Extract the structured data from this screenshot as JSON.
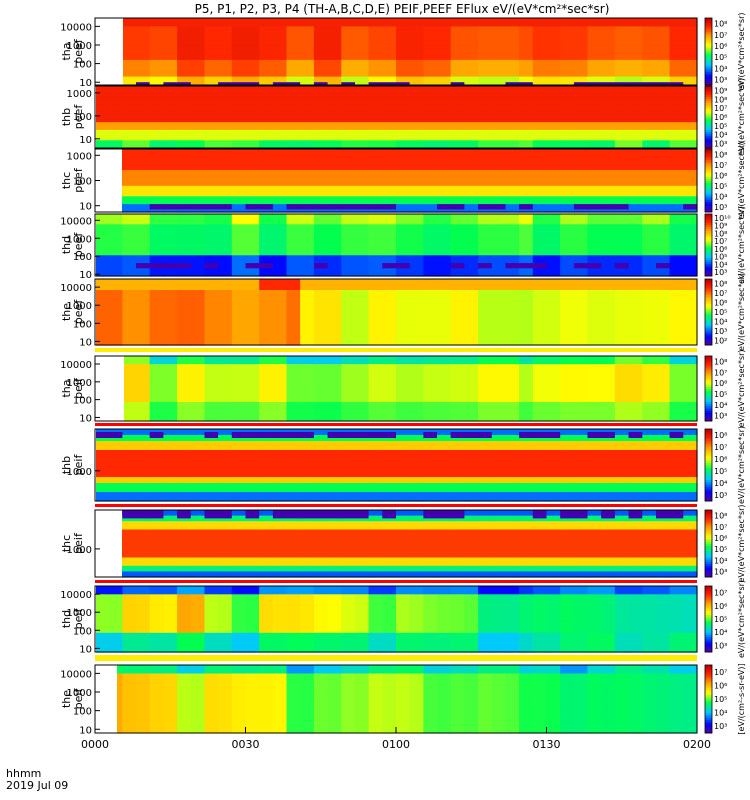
{
  "chart_data": {
    "type": "heatmap",
    "title": "P5, P1, P2, P3, P4 (TH-A,B,C,D,E) PEIF,PEEF EFlux eV/(eV*cm²*sec*sr)",
    "time_label": "hhmm",
    "date_label": "2019 Jul 09",
    "x_ticks": [
      "0000",
      "0030",
      "0100",
      "0130",
      "0200"
    ],
    "x_range_minutes": [
      0,
      120
    ],
    "y_scale": "log",
    "colormap": "rainbow",
    "panels": [
      {
        "probe": "tha",
        "product": "peef",
        "y_ticks": [
          "10",
          "100",
          "1000",
          "10000"
        ],
        "cbar_ticks": [
          "10³",
          "10⁴",
          "10⁵",
          "10⁶",
          "10⁷",
          "10⁸"
        ],
        "cbar_label": "eV/(eV*cm²*sec*sr)"
      },
      {
        "probe": "thb",
        "product": "peef",
        "y_ticks": [
          "10",
          "100",
          "1000"
        ],
        "cbar_ticks": [
          "10³",
          "10⁴",
          "10⁵",
          "10⁶",
          "10⁷",
          "10⁸",
          "10⁹"
        ],
        "cbar_label": "eV/(eV*cm²*sec*sr)"
      },
      {
        "probe": "thc",
        "product": "peef",
        "y_ticks": [
          "10",
          "100",
          "1000"
        ],
        "cbar_ticks": [
          "10³",
          "10⁴",
          "10⁵",
          "10⁶",
          "10⁷",
          "10⁸"
        ],
        "cbar_label": "eV/(eV*cm²*sec*sr)"
      },
      {
        "probe": "thd",
        "product": "peef",
        "y_ticks": [
          "10",
          "100",
          "1000",
          "10000"
        ],
        "cbar_ticks": [
          "10³",
          "10⁴",
          "10⁵",
          "10⁶",
          "10⁷",
          "10⁸",
          "10⁹",
          "10¹⁰"
        ],
        "cbar_label": "eV/(eV*cm²*sec*sr)"
      },
      {
        "probe": "the",
        "product": "peef",
        "y_ticks": [
          "10",
          "100",
          "1000",
          "10000"
        ],
        "cbar_ticks": [
          "10²",
          "10³",
          "10⁴",
          "10⁵",
          "10⁶",
          "10⁷",
          "10⁸"
        ],
        "cbar_label": "eV/(eV*cm²*sec*sr)"
      },
      {
        "probe": "tha",
        "product": "peif",
        "y_ticks": [
          "10",
          "100",
          "1000",
          "10000"
        ],
        "cbar_ticks": [
          "10³",
          "10⁴",
          "10⁵",
          "10⁶",
          "10⁷",
          "10⁸"
        ],
        "cbar_label": "eV/(eV*cm²*sec*sr)"
      },
      {
        "probe": "thb",
        "product": "peif",
        "y_ticks": [
          "1000"
        ],
        "cbar_ticks": [
          "10³",
          "10⁴",
          "10⁵",
          "10⁶",
          "10⁷",
          "10⁸"
        ],
        "cbar_label": "eV/(eV*cm²*sec*sr)"
      },
      {
        "probe": "thc",
        "product": "peif",
        "y_ticks": [
          "1000"
        ],
        "cbar_ticks": [
          "10³",
          "10⁴",
          "10⁵",
          "10⁶",
          "10⁷",
          "10⁸"
        ],
        "cbar_label": "eV/(eV*cm²*sec*sr)"
      },
      {
        "probe": "thd",
        "product": "peif",
        "y_ticks": [
          "10",
          "100",
          "1000",
          "10000"
        ],
        "cbar_ticks": [
          "10³",
          "10⁴",
          "10⁵",
          "10⁶",
          "10⁷"
        ],
        "cbar_label": "eV/(eV*cm²*sec*sr)"
      },
      {
        "probe": "the",
        "product": "peif",
        "y_ticks": [
          "10",
          "100",
          "1000",
          "10000"
        ],
        "cbar_ticks": [
          "10³",
          "10⁴",
          "10⁵",
          "10⁶",
          "10⁷"
        ],
        "cbar_label": "[eV/(cm²-s-sr-eV)]"
      }
    ]
  }
}
